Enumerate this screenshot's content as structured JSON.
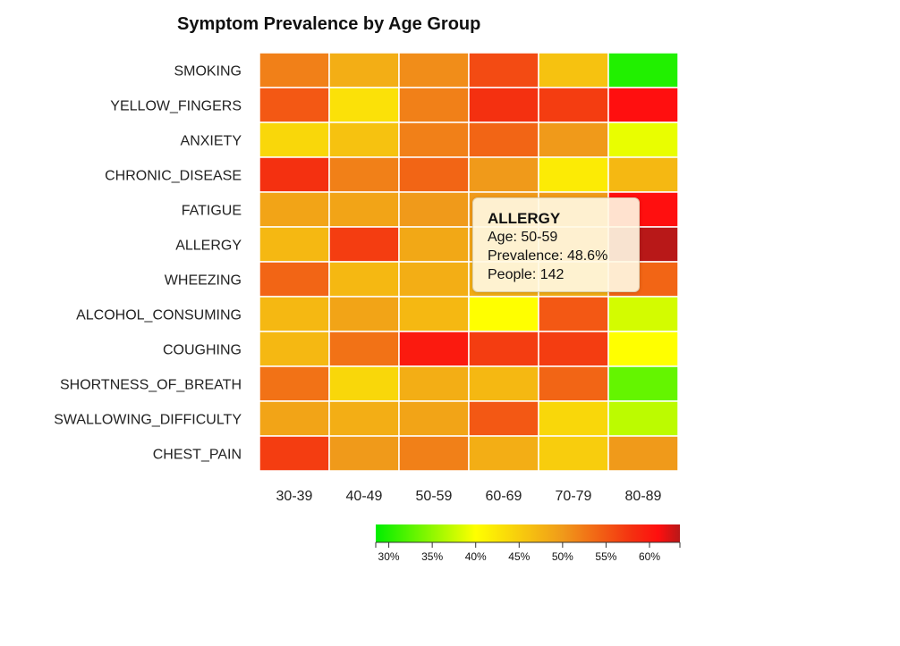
{
  "chart_data": {
    "type": "heatmap",
    "title": "Symptom Prevalence by Age Group",
    "rows": [
      "SMOKING",
      "YELLOW_FINGERS",
      "ANXIETY",
      "CHRONIC_DISEASE",
      "FATIGUE",
      "ALLERGY",
      "WHEEZING",
      "ALCOHOL_CONSUMING",
      "COUGHING",
      "SHORTNESS_OF_BREATH",
      "SWALLOWING_DIFFICULTY",
      "CHEST_PAIN"
    ],
    "columns": [
      "30-39",
      "40-49",
      "50-59",
      "60-69",
      "70-79",
      "80-89"
    ],
    "values": [
      [
        52,
        48,
        51,
        56,
        46,
        30
      ],
      [
        55,
        43,
        52,
        58,
        57,
        61
      ],
      [
        44,
        46,
        52,
        54,
        50,
        39
      ],
      [
        58,
        52,
        54,
        50,
        42,
        47
      ],
      [
        49,
        49,
        50,
        50,
        50,
        61
      ],
      [
        47,
        57,
        48.6,
        49,
        50,
        64
      ],
      [
        54,
        47,
        48,
        48,
        48,
        54
      ],
      [
        47,
        49,
        47,
        40,
        55,
        38
      ],
      [
        47,
        53,
        60,
        57,
        57,
        40
      ],
      [
        53,
        44,
        48,
        47,
        54,
        33
      ],
      [
        49,
        48,
        49,
        55,
        44,
        37
      ],
      [
        57,
        50,
        52,
        48,
        45,
        50
      ]
    ],
    "colorscale": {
      "min": 28.5,
      "max": 63.5,
      "stops": [
        {
          "value": 28.5,
          "color": "#00ee00"
        },
        {
          "value": 40,
          "color": "#ffff00"
        },
        {
          "value": 50,
          "color": "#f09a1a"
        },
        {
          "value": 58,
          "color": "#f43010"
        },
        {
          "value": 61,
          "color": "#ff0f0f"
        },
        {
          "value": 63.5,
          "color": "#b81818"
        }
      ],
      "ticks": [
        30,
        35,
        40,
        45,
        50,
        55,
        60
      ],
      "tick_labels": [
        "30%",
        "35%",
        "40%",
        "45%",
        "50%",
        "55%",
        "60%"
      ]
    },
    "grid_lines_color": "#ffffff"
  },
  "tooltip": {
    "title": "ALLERGY",
    "age_line": "Age: 50-59",
    "prevalence_line": "Prevalence: 48.6%",
    "people_line": "People: 142"
  }
}
